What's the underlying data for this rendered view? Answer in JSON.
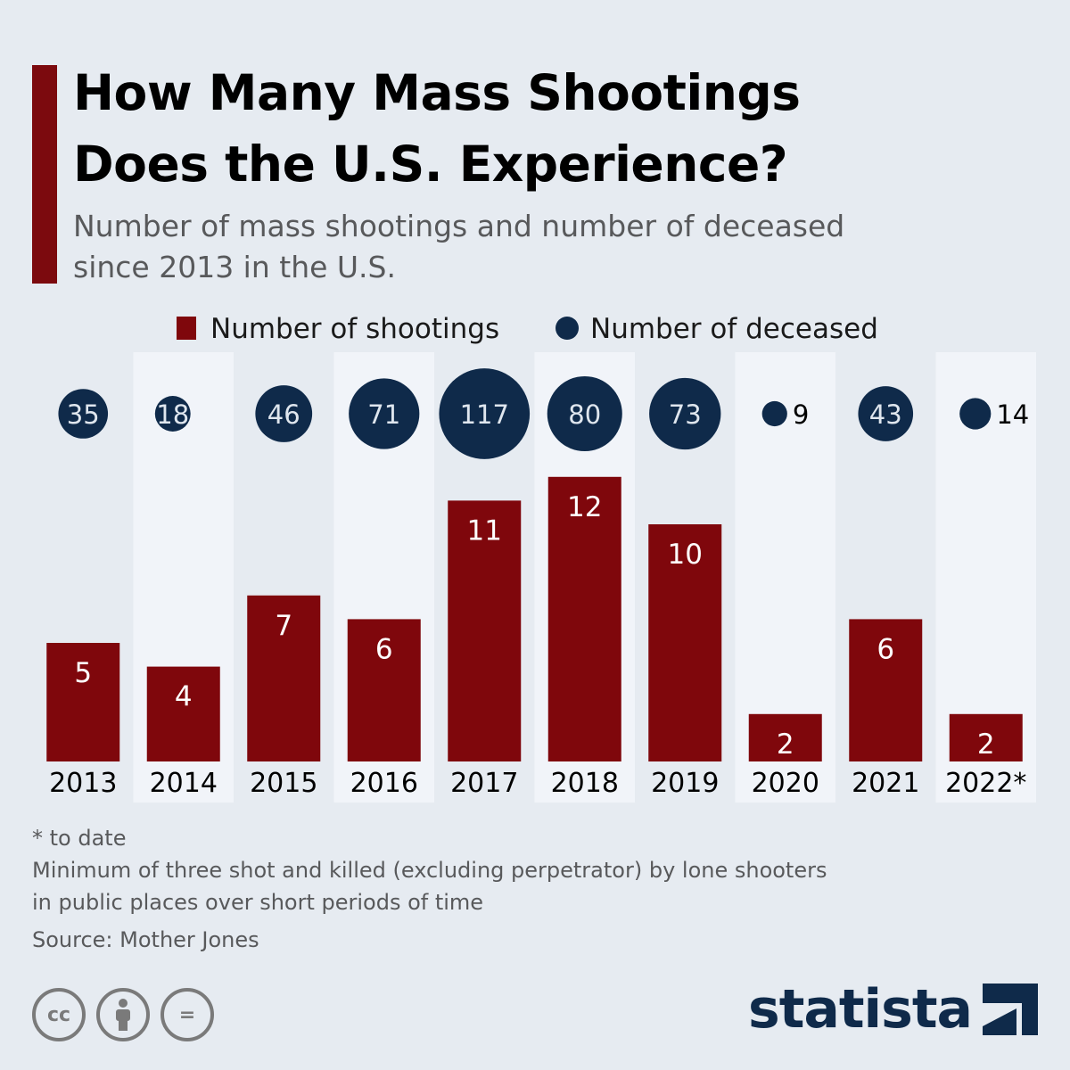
{
  "header": {
    "title_line1": "How Many Mass Shootings",
    "title_line2": "Does the U.S. Experience?",
    "subtitle_line1": "Number of mass shootings and number of deceased",
    "subtitle_line2": "since 2013 in the U.S."
  },
  "colors": {
    "accent": "#7c0a0e",
    "bar": "#7f070c",
    "bubble": "#0f2a4a",
    "background": "#e6ebf1",
    "band": "#f1f4f9"
  },
  "chart_data": {
    "type": "bar",
    "categories": [
      "2013",
      "2014",
      "2015",
      "2016",
      "2017",
      "2018",
      "2019",
      "2020",
      "2021",
      "2022*"
    ],
    "series": [
      {
        "name": "Number of shootings",
        "values": [
          5,
          4,
          7,
          6,
          11,
          12,
          10,
          2,
          6,
          2
        ]
      },
      {
        "name": "Number of deceased",
        "values": [
          35,
          18,
          46,
          71,
          117,
          80,
          73,
          9,
          43,
          14
        ]
      }
    ],
    "deceased_display": "bubble",
    "legend_position": "top",
    "ylim": [
      0,
      12
    ],
    "grid": false
  },
  "footnotes": {
    "note_asterisk": "* to date",
    "note_line1": "Minimum of three shot and killed (excluding perpetrator) by lone shooters",
    "note_line2": "in public places over short periods of time",
    "source": "Source: Mother Jones"
  },
  "license_icons": [
    {
      "icon": "cc-icon",
      "glyph": "cc"
    },
    {
      "icon": "attribution-icon",
      "glyph": ""
    },
    {
      "icon": "no-derivatives-icon",
      "glyph": "="
    }
  ],
  "brand": {
    "name": "statista",
    "icon": "statista-logo-icon"
  }
}
